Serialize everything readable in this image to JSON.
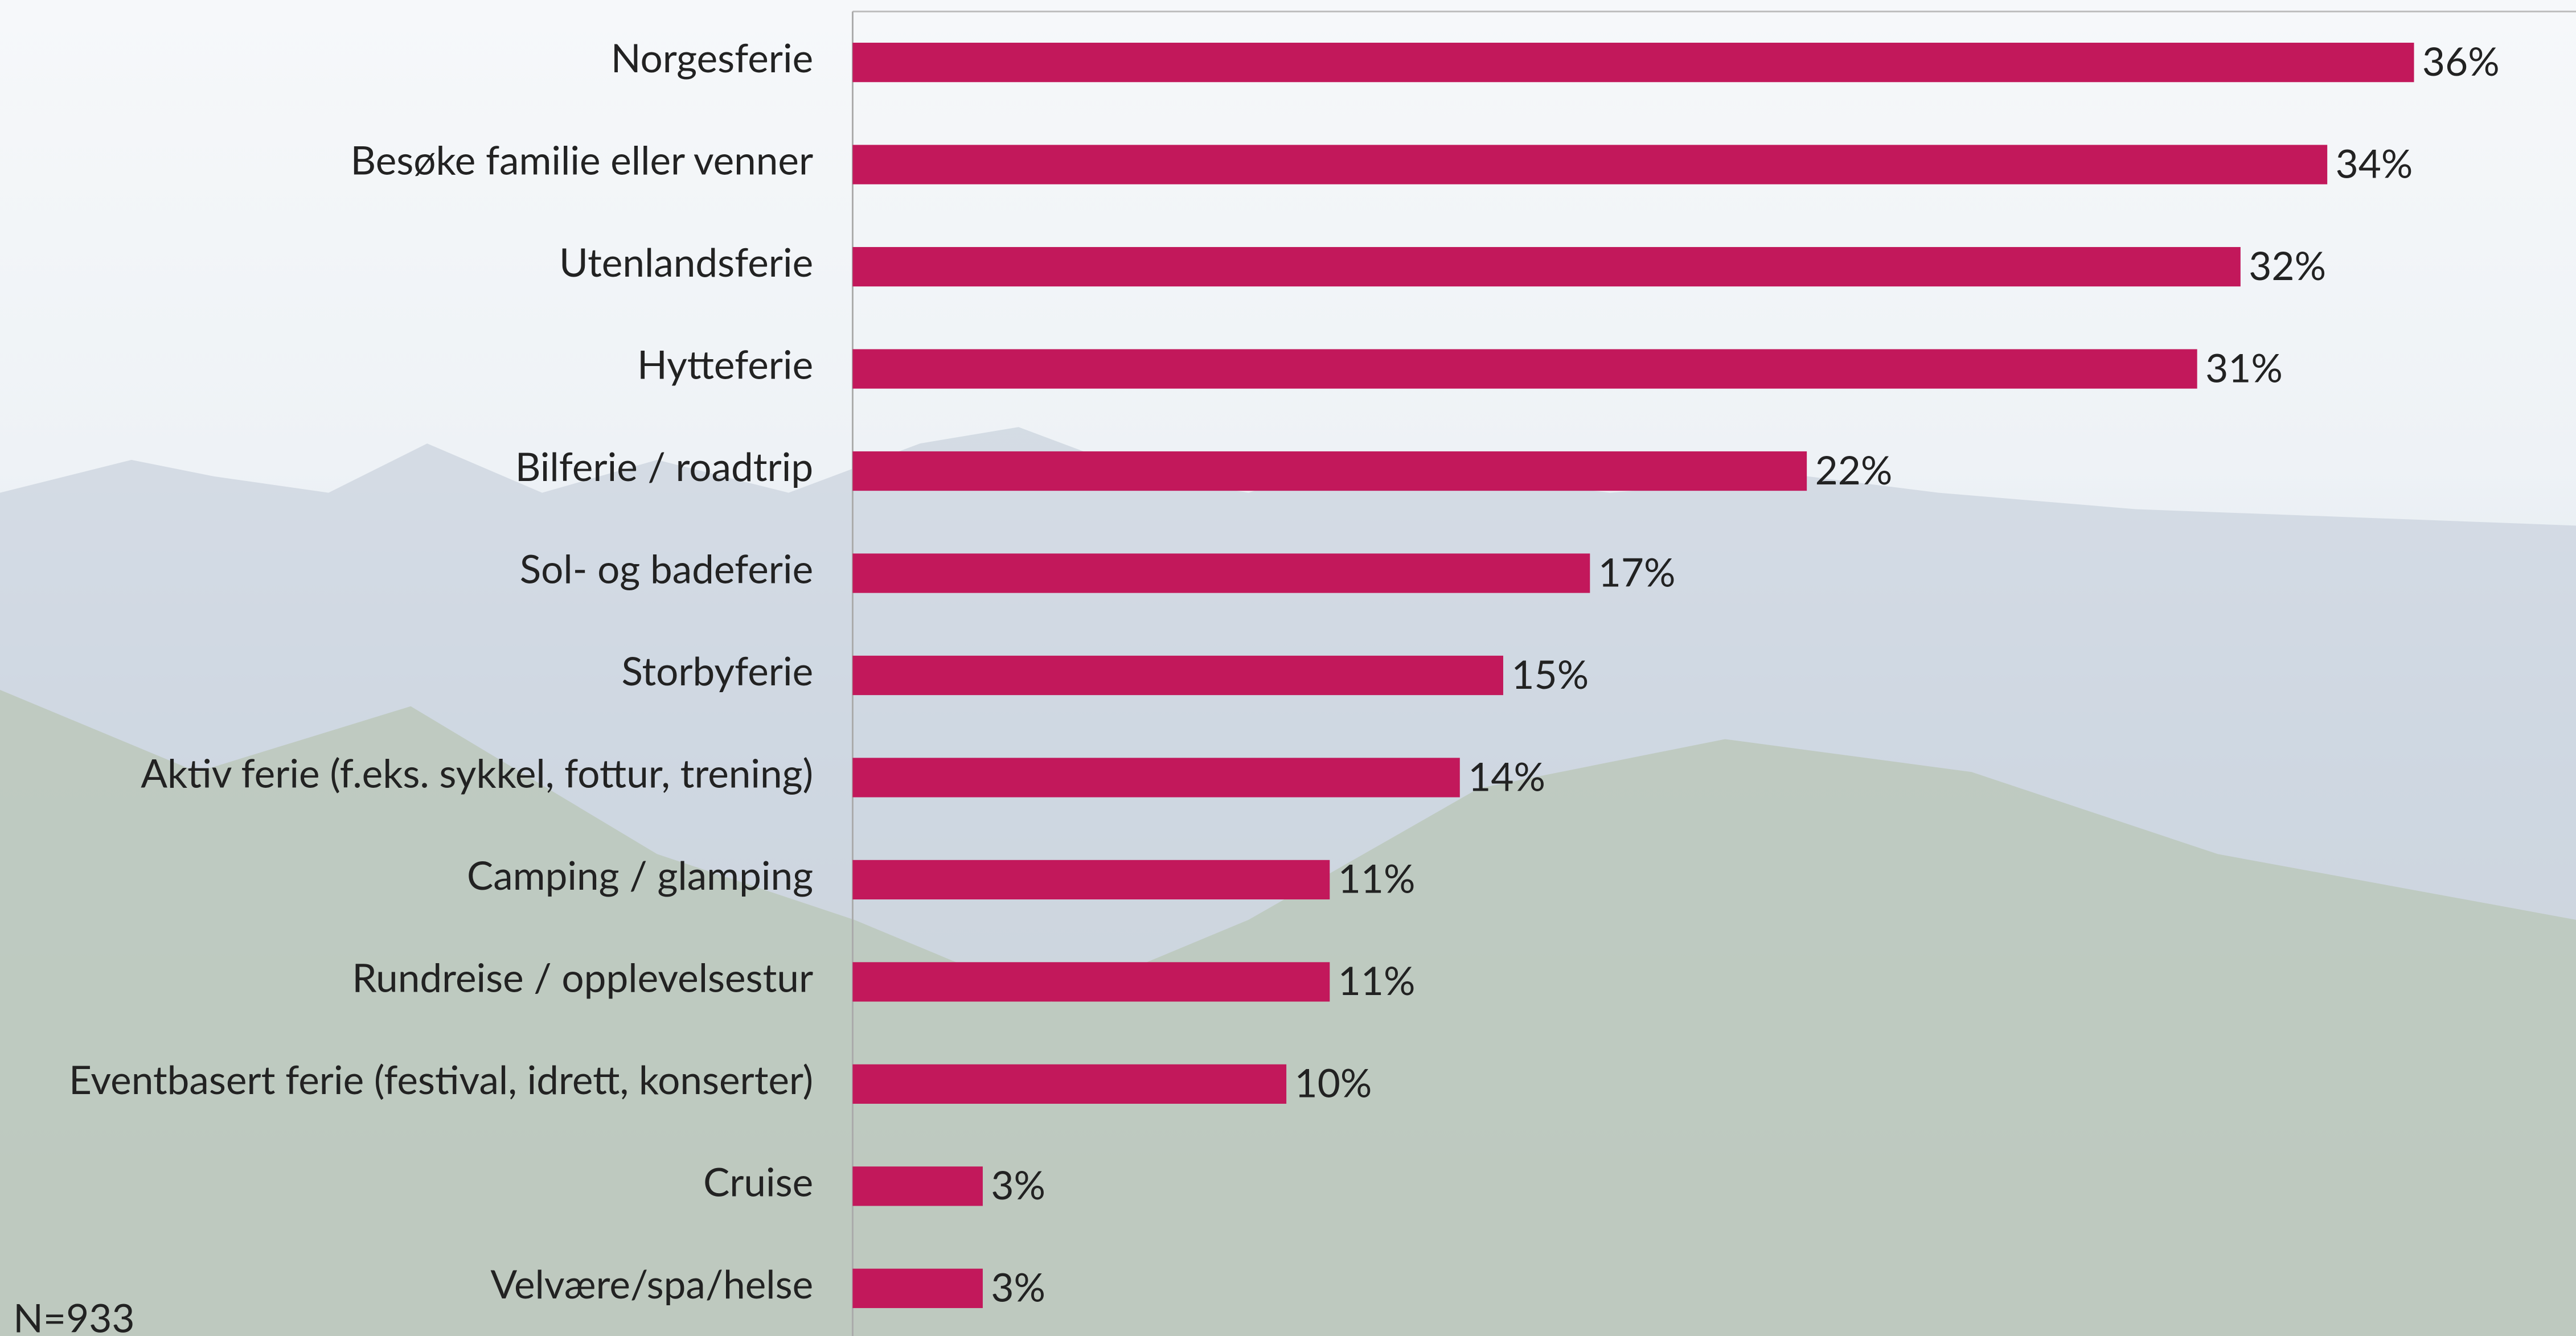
{
  "chart_data": {
    "type": "bar",
    "orientation": "horizontal",
    "categories": [
      "Norgesferie",
      "Besøke familie eller venner",
      "Utenlandsferie",
      "Hytteferie",
      "Bilferie / roadtrip",
      "Sol- og badeferie",
      "Storbyferie",
      "Aktiv ferie (f.eks. sykkel, fottur, trening)",
      "Camping / glamping",
      "Rundreise / opplevelsestur",
      "Eventbasert ferie (festival, idrett, konserter)",
      "Cruise",
      "Velvære/spa/helse"
    ],
    "values": [
      36,
      34,
      32,
      31,
      22,
      17,
      15,
      14,
      11,
      11,
      10,
      3,
      3
    ],
    "value_labels": [
      "36%",
      "34%",
      "32%",
      "31%",
      "22%",
      "17%",
      "15%",
      "14%",
      "11%",
      "11%",
      "10%",
      "3%",
      "3%"
    ],
    "color": "#c2185b",
    "note": "N=933"
  }
}
